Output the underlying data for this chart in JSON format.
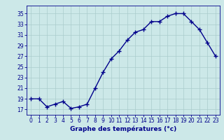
{
  "hours": [
    0,
    1,
    2,
    3,
    4,
    5,
    6,
    7,
    8,
    9,
    10,
    11,
    12,
    13,
    14,
    15,
    16,
    17,
    18,
    19,
    20,
    21,
    22,
    23
  ],
  "temperatures": [
    19.0,
    19.0,
    17.5,
    18.0,
    18.5,
    17.2,
    17.5,
    18.0,
    21.0,
    24.0,
    26.5,
    28.0,
    30.0,
    31.5,
    32.0,
    33.5,
    33.5,
    34.5,
    35.0,
    35.0,
    33.5,
    32.0,
    29.5,
    27.0
  ],
  "line_color": "#00008B",
  "marker": "+",
  "marker_size": 4,
  "marker_lw": 1.0,
  "line_width": 1.0,
  "xlabel": "Graphe des températures (°c)",
  "ylabel_ticks": [
    17,
    19,
    21,
    23,
    25,
    27,
    29,
    31,
    33,
    35
  ],
  "xlim": [
    -0.5,
    23.5
  ],
  "ylim": [
    16.0,
    36.5
  ],
  "bg_color": "#cce8e8",
  "grid_color": "#aacccc",
  "axis_label_color": "#00008B",
  "tick_label_color": "#00008B",
  "xlabel_fontsize": 6.5,
  "tick_fontsize": 5.5
}
